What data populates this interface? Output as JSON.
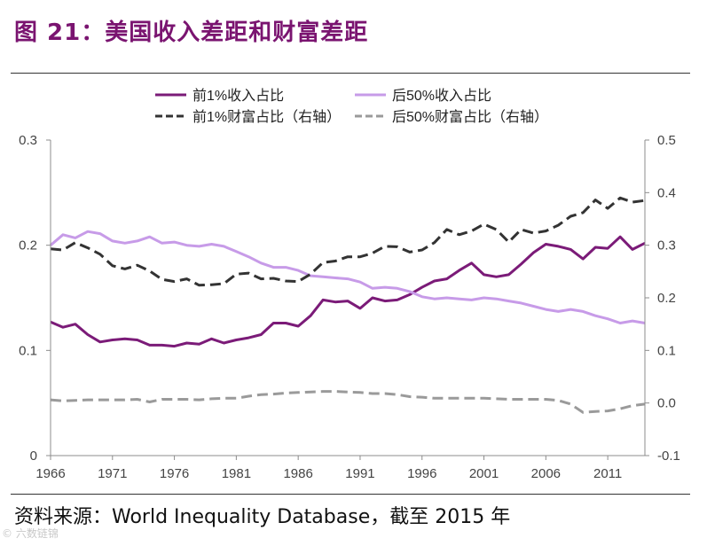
{
  "header": {
    "title": "图 21：美国收入差距和财富差距"
  },
  "footer": {
    "source": "资料来源：World Inequality Database，截至 2015 年",
    "watermark": "© 六数链锦"
  },
  "colors": {
    "title": "#7a1470",
    "top1_income": "#7b1b78",
    "bottom50_income": "#c79be8",
    "top1_wealth": "#333333",
    "bottom50_wealth": "#9a9a9a"
  },
  "chart_data": {
    "type": "line",
    "title": "美国收入差距和财富差距",
    "x_tick_labels": [
      "1966",
      "1971",
      "1976",
      "1981",
      "1986",
      "1991",
      "1996",
      "2001",
      "2006",
      "2011"
    ],
    "xlim": [
      1966,
      2014
    ],
    "y_left": {
      "ylim": [
        0,
        0.3
      ],
      "tick_labels": [
        "0",
        "0.1",
        "0.2",
        "0.3"
      ]
    },
    "y_right": {
      "ylim": [
        -0.1,
        0.5
      ],
      "tick_labels": [
        "-0.1",
        "0.0",
        "0.1",
        "0.2",
        "0.3",
        "0.4",
        "0.5"
      ]
    },
    "legend_position": "top",
    "x": [
      1966,
      1967,
      1968,
      1969,
      1970,
      1971,
      1972,
      1973,
      1974,
      1975,
      1976,
      1977,
      1978,
      1979,
      1980,
      1981,
      1982,
      1983,
      1984,
      1985,
      1986,
      1987,
      1988,
      1989,
      1990,
      1991,
      1992,
      1993,
      1994,
      1995,
      1996,
      1997,
      1998,
      1999,
      2000,
      2001,
      2002,
      2003,
      2004,
      2005,
      2006,
      2007,
      2008,
      2009,
      2010,
      2011,
      2012,
      2013,
      2014
    ],
    "series": [
      {
        "name": "前1%收入占比",
        "axis": "left",
        "style": "solid",
        "color_key": "top1_income",
        "values": [
          0.127,
          0.122,
          0.125,
          0.115,
          0.108,
          0.11,
          0.111,
          0.11,
          0.105,
          0.105,
          0.104,
          0.107,
          0.106,
          0.111,
          0.107,
          0.11,
          0.112,
          0.115,
          0.126,
          0.126,
          0.123,
          0.133,
          0.148,
          0.146,
          0.147,
          0.14,
          0.15,
          0.147,
          0.148,
          0.153,
          0.16,
          0.166,
          0.168,
          0.176,
          0.183,
          0.172,
          0.17,
          0.172,
          0.182,
          0.193,
          0.201,
          0.199,
          0.196,
          0.187,
          0.198,
          0.197,
          0.208,
          0.196,
          0.202
        ]
      },
      {
        "name": "后50%收入占比",
        "axis": "left",
        "style": "solid",
        "color_key": "bottom50_income",
        "values": [
          0.2,
          0.21,
          0.207,
          0.213,
          0.211,
          0.204,
          0.202,
          0.204,
          0.208,
          0.202,
          0.203,
          0.2,
          0.199,
          0.201,
          0.199,
          0.194,
          0.189,
          0.183,
          0.179,
          0.179,
          0.176,
          0.171,
          0.17,
          0.169,
          0.168,
          0.165,
          0.159,
          0.16,
          0.159,
          0.156,
          0.151,
          0.149,
          0.15,
          0.149,
          0.148,
          0.15,
          0.149,
          0.147,
          0.145,
          0.142,
          0.139,
          0.137,
          0.139,
          0.137,
          0.133,
          0.13,
          0.126,
          0.128,
          0.126
        ]
      },
      {
        "name": "前1%财富占比（右轴）",
        "axis": "right",
        "style": "dashed",
        "color_key": "top1_wealth",
        "values": [
          0.293,
          0.291,
          0.305,
          0.295,
          0.283,
          0.261,
          0.255,
          0.262,
          0.251,
          0.235,
          0.231,
          0.236,
          0.224,
          0.225,
          0.227,
          0.245,
          0.247,
          0.236,
          0.237,
          0.232,
          0.231,
          0.245,
          0.267,
          0.27,
          0.278,
          0.278,
          0.285,
          0.298,
          0.297,
          0.287,
          0.291,
          0.305,
          0.33,
          0.32,
          0.327,
          0.34,
          0.33,
          0.306,
          0.33,
          0.323,
          0.327,
          0.338,
          0.355,
          0.362,
          0.386,
          0.37,
          0.39,
          0.382,
          0.385
        ]
      },
      {
        "name": "后50%财富占比（右轴）",
        "axis": "right",
        "style": "dashed",
        "color_key": "bottom50_wealth",
        "values": [
          0.006,
          0.004,
          0.005,
          0.006,
          0.006,
          0.006,
          0.006,
          0.007,
          0.002,
          0.007,
          0.007,
          0.007,
          0.006,
          0.008,
          0.009,
          0.009,
          0.013,
          0.016,
          0.017,
          0.019,
          0.02,
          0.021,
          0.022,
          0.022,
          0.021,
          0.02,
          0.018,
          0.018,
          0.016,
          0.012,
          0.011,
          0.009,
          0.009,
          0.009,
          0.009,
          0.009,
          0.008,
          0.007,
          0.007,
          0.007,
          0.007,
          0.005,
          -0.002,
          -0.018,
          -0.016,
          -0.015,
          -0.011,
          -0.005,
          -0.002
        ]
      }
    ]
  }
}
